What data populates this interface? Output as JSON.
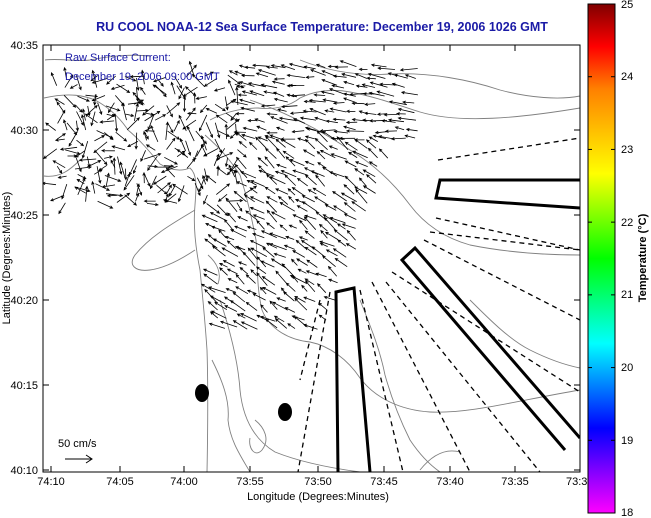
{
  "title": "RU COOL  NOAA-12  Sea Surface Temperature:  December 19, 2006 1026 GMT",
  "legend": {
    "line1": "Raw Surface Current:",
    "line2": "December 19, 2006 09:00 GMT",
    "scale_label": "50 cm/s"
  },
  "x_axis": {
    "label": "Longitude (Degrees:Minutes)",
    "ticks": [
      "74:10",
      "74:05",
      "74:00",
      "73:55",
      "73:50",
      "73:45",
      "73:40",
      "73:35",
      "73:3"
    ]
  },
  "y_axis": {
    "label": "Latitude (Degrees:Minutes)",
    "ticks": [
      "40:35",
      "40:30",
      "40:25",
      "40:20",
      "40:15",
      "40:10"
    ]
  },
  "colorbar": {
    "label": "Temperature (°C)",
    "min": 18,
    "max": 25,
    "ticks": [
      "25",
      "24",
      "23",
      "22",
      "21",
      "20",
      "19",
      "18"
    ],
    "colors": [
      "#ff00ff",
      "#8000ff",
      "#0000ff",
      "#0080ff",
      "#00ffff",
      "#00ff80",
      "#00ff00",
      "#80ff00",
      "#ffff00",
      "#ffc000",
      "#ff8000",
      "#ff0000",
      "#800000"
    ]
  },
  "colors": {
    "title": "#1a1aa6",
    "frame": "#000000",
    "contour": "#808080",
    "vector": "#000000"
  }
}
